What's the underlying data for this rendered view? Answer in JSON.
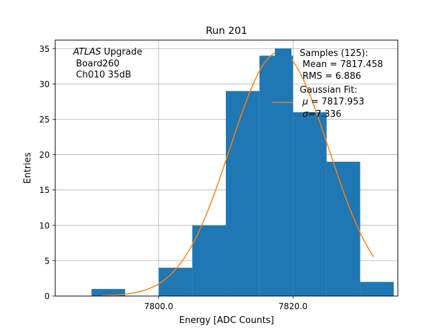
{
  "chart_data": {
    "type": "bar",
    "title": "Run 201",
    "xlabel": "Energy [ADC Counts]",
    "ylabel": "Entries",
    "xlim": [
      7784.6,
      7835.6
    ],
    "ylim": [
      0,
      36.2
    ],
    "grid": true,
    "x_ticks": [
      {
        "value": 7800,
        "label": "7800.0"
      },
      {
        "value": 7820,
        "label": "7820.0"
      }
    ],
    "y_ticks": [
      {
        "value": 0,
        "label": "0"
      },
      {
        "value": 5,
        "label": "5"
      },
      {
        "value": 10,
        "label": "10"
      },
      {
        "value": 15,
        "label": "15"
      },
      {
        "value": 20,
        "label": "20"
      },
      {
        "value": 25,
        "label": "25"
      },
      {
        "value": 30,
        "label": "30"
      },
      {
        "value": 35,
        "label": "35"
      }
    ],
    "histogram": {
      "name": "Samples",
      "bin_edges": [
        7790,
        7795,
        7800,
        7805,
        7810,
        7815,
        7820,
        7825,
        7830,
        7835
      ],
      "counts": [
        1,
        0,
        4,
        10,
        29,
        34,
        26,
        19,
        2
      ],
      "color": "#1f77b4"
    },
    "fit": {
      "name": "Gaussian Fit",
      "type": "gaussian",
      "amplitude": 34.5,
      "mu": 7817.953,
      "sigma": 7.336,
      "x_range": [
        7791.5,
        7832.0
      ],
      "color": "#ff7f0e"
    },
    "annotation": {
      "experiment": "ATLAS",
      "experiment_suffix": " Upgrade",
      "board": "Board260",
      "channel": "Ch010 35dB"
    },
    "legend": {
      "placement": "top-right",
      "samples_header": "Samples (125):",
      "samples_mean": "Mean = 7817.458",
      "samples_rms": "RMS = 6.886",
      "fit_header": "Gaussian Fit:",
      "fit_mu_symbol": "μ",
      "fit_mu_value": " = 7817.953",
      "fit_sigma_symbol": "σ",
      "fit_sigma_value": "=7.336"
    }
  }
}
